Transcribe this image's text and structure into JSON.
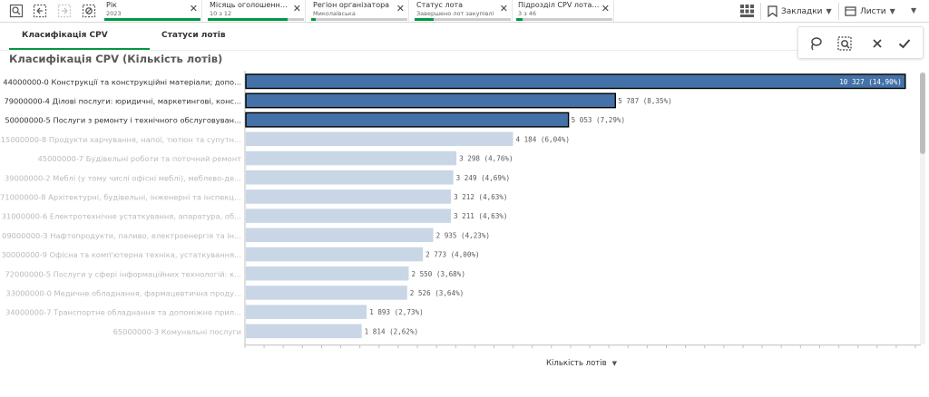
{
  "selection_bar": {
    "tools": [
      "smart-search-icon",
      "step-back-icon",
      "step-forward-icon",
      "clear-selections-icon"
    ],
    "chips": [
      {
        "title": "Рік",
        "value": "2023",
        "fill": 1.0
      },
      {
        "title": "Місяць оголошення ...",
        "value": "10 з 12",
        "fill": 0.83
      },
      {
        "title": "Регіон організатора",
        "value": "Миколаївська",
        "fill": 0.05
      },
      {
        "title": "Статус лота",
        "value": "Завершено лот закупівлі",
        "fill": 0.2
      },
      {
        "title": "Підрозділ CPV лота ...",
        "value": "3 з 46",
        "fill": 0.07
      }
    ],
    "close_glyph": "✕",
    "bookmarks_label": "Закладки",
    "sheets_label": "Листи"
  },
  "tabs": [
    {
      "label": "Класифікація CPV",
      "active": true
    },
    {
      "label": "Статуси лотів",
      "active": false
    }
  ],
  "selection_toolbar": [
    "lasso-icon",
    "select-values-icon",
    "cancel-icon",
    "confirm-icon"
  ],
  "chart_title": "Класифікація CPV (Кількість лотів)",
  "measure_label": "Кількість лотів",
  "colors": {
    "selected": "#4472a8",
    "selected_border": "#000000",
    "excluded": "#c8d6e5",
    "label_selected": "#333333",
    "label_excluded": "#bbbbbb",
    "green": "#009845"
  },
  "chart_data": {
    "type": "bar",
    "orientation": "horizontal",
    "xlim": [
      0,
      10500
    ],
    "categories": [
      "44000000-0 Конструкції та конструкційні матеріали; допо...",
      "79000000-4 Ділові послуги: юридичні, маркетингові, конс...",
      "50000000-5 Послуги з ремонту і технічного обслуговуван...",
      "15000000-8 Продукти харчування, напої, тютюн та супутн...",
      "45000000-7 Будівельні роботи та поточний ремонт",
      "39000000-2 Меблі (у тому числі офісні меблі), меблево-де...",
      "71000000-8 Архітектурні, будівельні, інженерні та інспекц...",
      "31000000-6 Електротехнічне устаткування, апаратура, об...",
      "09000000-3 Нафтопродукти, паливо, електроенергія та ін...",
      "30000000-9 Офісна та комп'ютерна техніка, устаткування...",
      "72000000-5 Послуги у сфері інформаційних технологій: к...",
      "33000000-0 Медичне обладнання, фармацевтична проду...",
      "34000000-7 Транспортне обладнання та допоміжне прил...",
      "65000000-3 Комунальні послуги"
    ],
    "values": [
      10327,
      5787,
      5053,
      4184,
      3298,
      3249,
      3212,
      3211,
      2935,
      2773,
      2550,
      2526,
      1893,
      1814
    ],
    "data_labels": [
      "10 327 (14,90%)",
      "5 787 (8,35%)",
      "5 053 (7,29%)",
      "4 184 (6,04%)",
      "3 298 (4,76%)",
      "3 249 (4,69%)",
      "3 212 (4,63%)",
      "3 211 (4,63%)",
      "2 935 (4,23%)",
      "2 773 (4,00%)",
      "2 550 (3,68%)",
      "2 526 (3,64%)",
      "1 893 (2,73%)",
      "1 814 (2,62%)"
    ],
    "selected": [
      true,
      true,
      true,
      false,
      false,
      false,
      false,
      false,
      false,
      false,
      false,
      false,
      false,
      false
    ]
  }
}
